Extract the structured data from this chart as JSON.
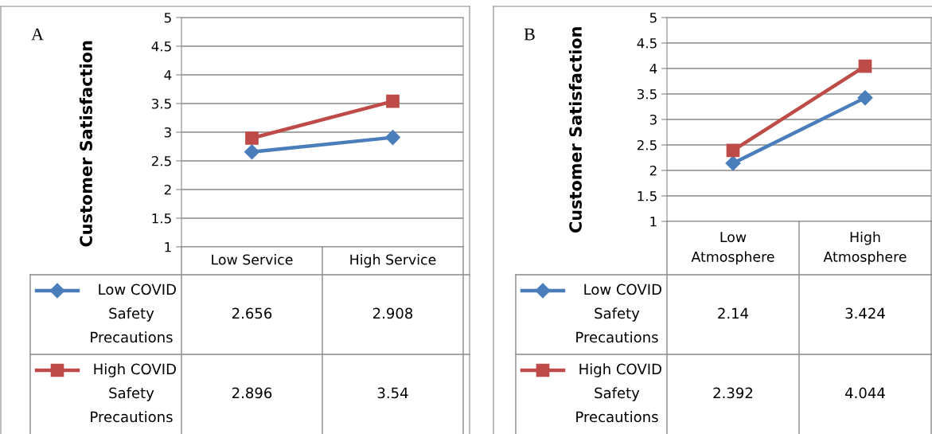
{
  "chart_data": [
    {
      "type": "line",
      "annotations": [
        "A"
      ],
      "ylabel": "Customer Satisfaction",
      "categories": [
        "Low Service",
        "High Service"
      ],
      "ylim": [
        1,
        5
      ],
      "yticks": [
        1,
        1.5,
        2,
        2.5,
        3,
        3.5,
        4,
        4.5,
        5
      ],
      "grid": "y",
      "legend": "bottom",
      "data_labels": true,
      "line_style": "solid",
      "series": [
        {
          "name": "Low COVID Safety Precautions",
          "color": "#4a7ebb",
          "marker": "diamond",
          "values": [
            2.656,
            2.908
          ]
        },
        {
          "name": "High COVID Safety Precautions",
          "color": "#be4b48",
          "marker": "square",
          "values": [
            2.896,
            3.54
          ]
        }
      ]
    },
    {
      "type": "line",
      "annotations": [
        "B"
      ],
      "ylabel": "Customer Satisfaction",
      "categories": [
        "Low Atmosphere",
        "High Atmosphere"
      ],
      "ylim": [
        1,
        5
      ],
      "yticks": [
        1,
        1.5,
        2,
        2.5,
        3,
        3.5,
        4,
        4.5,
        5
      ],
      "grid": "y",
      "legend": "bottom",
      "data_labels": true,
      "line_style": "solid",
      "series": [
        {
          "name": "Low COVID Safety Precautions",
          "color": "#4a7ebb",
          "marker": "diamond",
          "values": [
            2.14,
            3.424
          ]
        },
        {
          "name": "High COVID Safety Precautions",
          "color": "#be4b48",
          "marker": "square",
          "values": [
            2.392,
            4.044
          ]
        }
      ]
    }
  ]
}
